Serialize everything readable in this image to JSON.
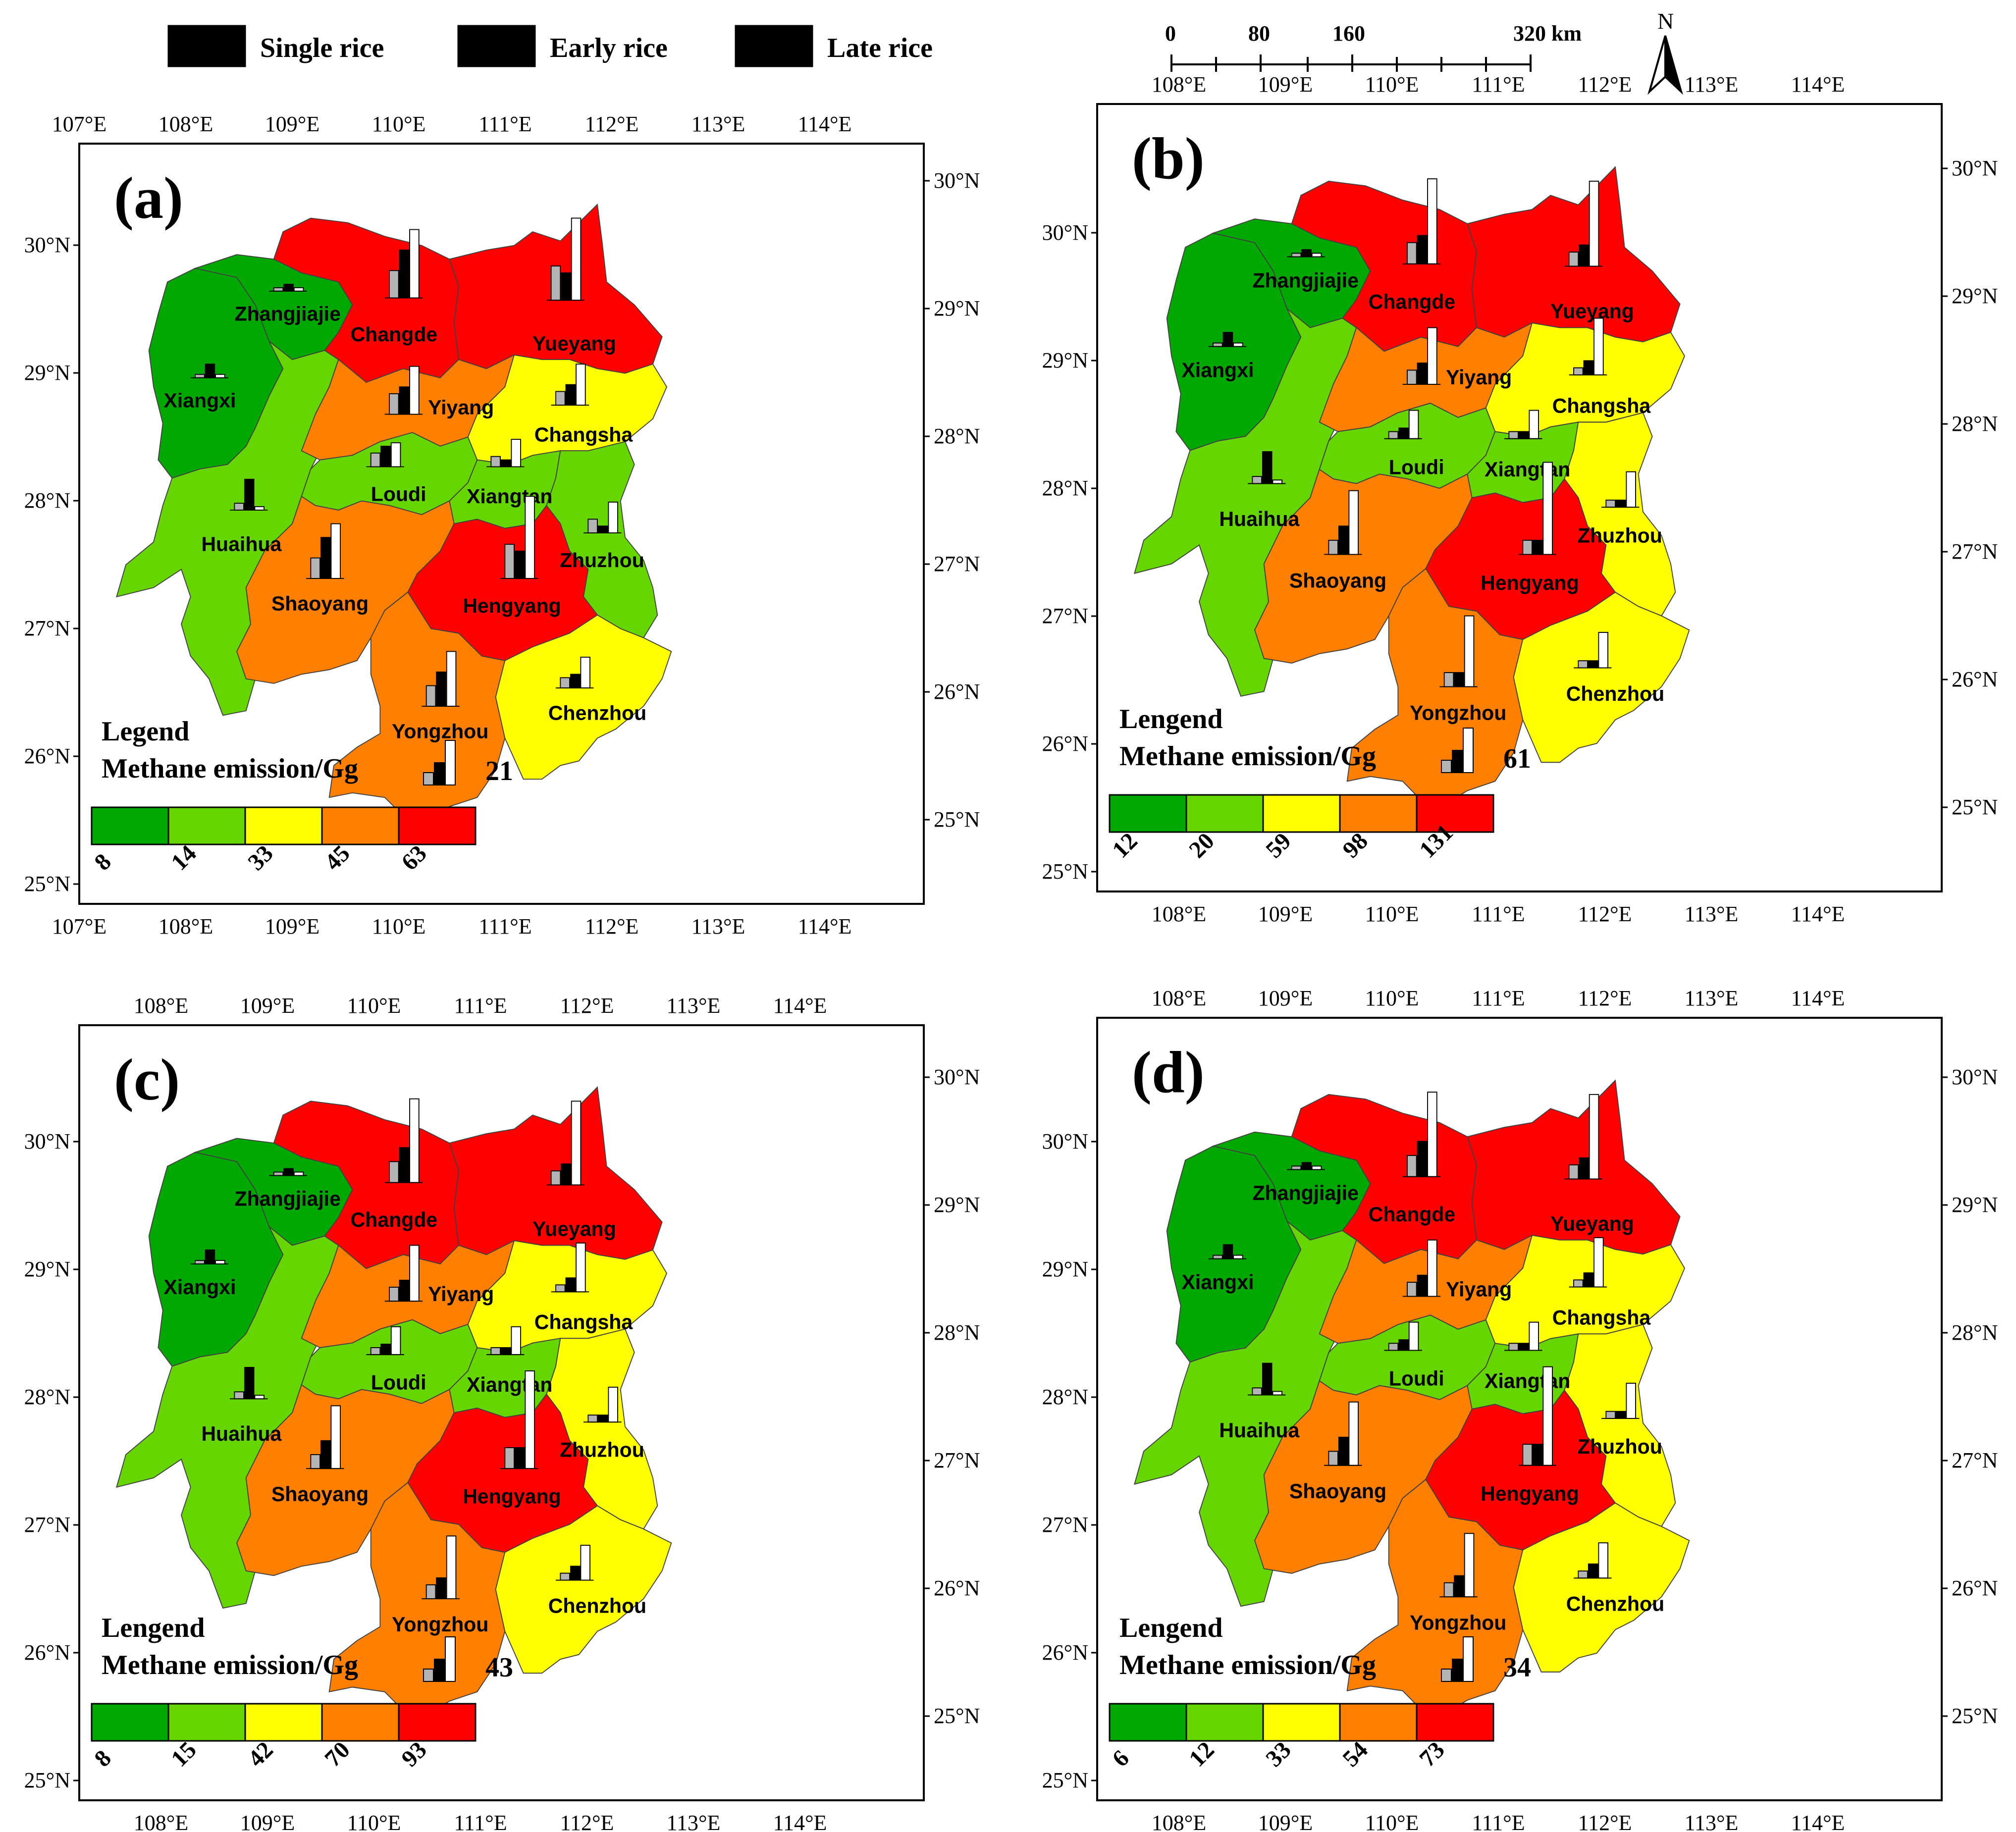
{
  "colors": {
    "class1": "#00a800",
    "class2": "#66d600",
    "class3": "#ffff00",
    "class4": "#ff7f00",
    "class5": "#ff0000",
    "single": "#000000",
    "early": "#b4b4b4",
    "late": "#ffffff"
  },
  "rice_legend": {
    "single": "Single rice",
    "early": "Early rice",
    "late": "Late rice"
  },
  "scalebar": {
    "ticks": [
      "0",
      "80",
      "160",
      "320 km"
    ],
    "north": "N"
  },
  "lon_labels": [
    "107°E",
    "108°E",
    "109°E",
    "110°E",
    "111°E",
    "112°E",
    "113°E",
    "114°E"
  ],
  "lat_labels": [
    "25°N",
    "26°N",
    "27°N",
    "28°N",
    "29°N",
    "30°N"
  ],
  "panels": [
    {
      "label": "(a)",
      "legend_title": "Legend",
      "legend_unit": "Methane emission/Gg",
      "bar_value": "21",
      "breaks": [
        "8",
        "14",
        "33",
        "45",
        "63"
      ],
      "classes": {
        "Xiangxi": 1,
        "Zhangjiajie": 1,
        "Huaihua": 2,
        "Loudi": 2,
        "Xiangtan": 2,
        "Zhuzhou": 2,
        "Changsha": 3,
        "Chenzhou": 3,
        "Yiyang": 4,
        "Shaoyang": 4,
        "Yongzhou": 4,
        "Changde": 5,
        "Yueyang": 5,
        "Hengyang": 5
      },
      "bars": {
        "Zhangjiajie": [
          0.05,
          0.1,
          0.05
        ],
        "Xiangxi": [
          0.05,
          0.2,
          0.05
        ],
        "Huaihua": [
          0.1,
          0.45,
          0.05
        ],
        "Changde": [
          0.4,
          0.7,
          1.0
        ],
        "Yueyang": [
          0.5,
          0.4,
          1.2
        ],
        "Yiyang": [
          0.3,
          0.4,
          0.7
        ],
        "Changsha": [
          0.2,
          0.3,
          0.6
        ],
        "Loudi": [
          0.2,
          0.3,
          0.35
        ],
        "Xiangtan": [
          0.15,
          0.1,
          0.4
        ],
        "Zhuzhou": [
          0.2,
          0.1,
          0.45
        ],
        "Shaoyang": [
          0.3,
          0.6,
          0.8
        ],
        "Hengyang": [
          0.5,
          0.4,
          1.2
        ],
        "Yongzhou": [
          0.3,
          0.5,
          0.8
        ],
        "Chenzhou": [
          0.15,
          0.2,
          0.45
        ]
      }
    },
    {
      "label": "(b)",
      "legend_title": "Lengend",
      "legend_unit": "Methane emission/Gg",
      "bar_value": "61",
      "breaks": [
        "12",
        "20",
        "59",
        "98",
        "131"
      ],
      "classes": {
        "Xiangxi": 1,
        "Zhangjiajie": 1,
        "Huaihua": 2,
        "Loudi": 2,
        "Xiangtan": 2,
        "Changsha": 3,
        "Zhuzhou": 3,
        "Chenzhou": 3,
        "Yiyang": 4,
        "Shaoyang": 4,
        "Yongzhou": 4,
        "Changde": 5,
        "Yueyang": 5,
        "Hengyang": 5
      },
      "bars": {
        "Zhangjiajie": [
          0.05,
          0.1,
          0.05
        ],
        "Xiangxi": [
          0.05,
          0.2,
          0.05
        ],
        "Huaihua": [
          0.1,
          0.45,
          0.05
        ],
        "Changde": [
          0.3,
          0.4,
          1.2
        ],
        "Yueyang": [
          0.2,
          0.3,
          1.2
        ],
        "Yiyang": [
          0.2,
          0.3,
          0.8
        ],
        "Changsha": [
          0.1,
          0.2,
          0.8
        ],
        "Loudi": [
          0.1,
          0.15,
          0.4
        ],
        "Xiangtan": [
          0.1,
          0.1,
          0.4
        ],
        "Zhuzhou": [
          0.1,
          0.1,
          0.5
        ],
        "Shaoyang": [
          0.2,
          0.4,
          0.9
        ],
        "Hengyang": [
          0.2,
          0.2,
          1.3
        ],
        "Yongzhou": [
          0.2,
          0.2,
          1.0
        ],
        "Chenzhou": [
          0.1,
          0.1,
          0.5
        ]
      }
    },
    {
      "label": "(c)",
      "legend_title": "Lengend",
      "legend_unit": "Methane emission/Gg",
      "bar_value": "43",
      "breaks": [
        "8",
        "15",
        "42",
        "70",
        "93"
      ],
      "classes": {
        "Xiangxi": 1,
        "Zhangjiajie": 1,
        "Huaihua": 2,
        "Loudi": 2,
        "Xiangtan": 2,
        "Changsha": 3,
        "Zhuzhou": 3,
        "Chenzhou": 3,
        "Yiyang": 4,
        "Shaoyang": 4,
        "Yongzhou": 4,
        "Changde": 5,
        "Yueyang": 5,
        "Hengyang": 5
      },
      "bars": {
        "Zhangjiajie": [
          0.05,
          0.1,
          0.05
        ],
        "Xiangxi": [
          0.05,
          0.2,
          0.05
        ],
        "Huaihua": [
          0.1,
          0.45,
          0.05
        ],
        "Changde": [
          0.3,
          0.5,
          1.2
        ],
        "Yueyang": [
          0.2,
          0.3,
          1.2
        ],
        "Yiyang": [
          0.2,
          0.3,
          0.8
        ],
        "Changsha": [
          0.1,
          0.2,
          0.7
        ],
        "Loudi": [
          0.1,
          0.15,
          0.4
        ],
        "Xiangtan": [
          0.1,
          0.1,
          0.4
        ],
        "Zhuzhou": [
          0.1,
          0.1,
          0.5
        ],
        "Shaoyang": [
          0.2,
          0.4,
          0.9
        ],
        "Hengyang": [
          0.3,
          0.3,
          1.4
        ],
        "Yongzhou": [
          0.2,
          0.3,
          0.9
        ],
        "Chenzhou": [
          0.1,
          0.2,
          0.5
        ]
      }
    },
    {
      "label": "(d)",
      "legend_title": "Lengend",
      "legend_unit": "Methane emission/Gg",
      "bar_value": "34",
      "breaks": [
        "6",
        "12",
        "33",
        "54",
        "73"
      ],
      "classes": {
        "Xiangxi": 1,
        "Zhangjiajie": 1,
        "Huaihua": 2,
        "Loudi": 2,
        "Xiangtan": 2,
        "Changsha": 3,
        "Zhuzhou": 3,
        "Chenzhou": 3,
        "Yiyang": 4,
        "Shaoyang": 4,
        "Yongzhou": 4,
        "Changde": 5,
        "Yueyang": 5,
        "Hengyang": 5
      },
      "bars": {
        "Zhangjiajie": [
          0.05,
          0.1,
          0.05
        ],
        "Xiangxi": [
          0.05,
          0.2,
          0.05
        ],
        "Huaihua": [
          0.1,
          0.45,
          0.05
        ],
        "Changde": [
          0.3,
          0.5,
          1.2
        ],
        "Yueyang": [
          0.2,
          0.3,
          1.2
        ],
        "Yiyang": [
          0.2,
          0.3,
          0.8
        ],
        "Changsha": [
          0.1,
          0.2,
          0.7
        ],
        "Loudi": [
          0.1,
          0.15,
          0.4
        ],
        "Xiangtan": [
          0.1,
          0.1,
          0.4
        ],
        "Zhuzhou": [
          0.1,
          0.1,
          0.5
        ],
        "Shaoyang": [
          0.2,
          0.4,
          0.9
        ],
        "Hengyang": [
          0.3,
          0.3,
          1.4
        ],
        "Yongzhou": [
          0.2,
          0.3,
          0.9
        ],
        "Chenzhou": [
          0.1,
          0.2,
          0.5
        ]
      }
    }
  ]
}
